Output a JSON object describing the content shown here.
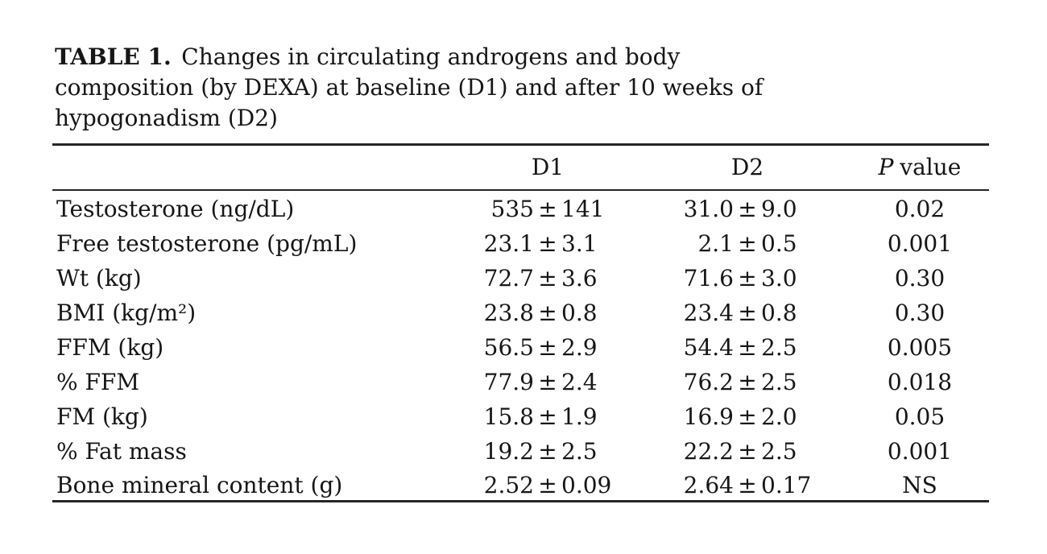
{
  "title": {
    "label": "TABLE 1.",
    "lines": [
      "Changes in circulating androgens and body",
      "composition (by DEXA) at baseline (D1) and after 10 weeks of",
      "hypogonadism (D2)"
    ]
  },
  "table": {
    "pm": "±",
    "columns": {
      "label": "",
      "d1": "D1",
      "d2": "D2",
      "p_symbol": "P",
      "p_rest": "value"
    },
    "rows": [
      {
        "label": "Testosterone (ng/dL)",
        "d1_mean": "535",
        "d1_sd": "141",
        "d2_mean": "31.0",
        "d2_sd": "9.0",
        "p": "0.02"
      },
      {
        "label": "Free testosterone (pg/mL)",
        "d1_mean": "23.1",
        "d1_sd": "3.1",
        "d2_mean": "2.1",
        "d2_sd": "0.5",
        "p": "0.001"
      },
      {
        "label": "Wt (kg)",
        "d1_mean": "72.7",
        "d1_sd": "3.6",
        "d2_mean": "71.6",
        "d2_sd": "3.0",
        "p": "0.30"
      },
      {
        "label": "BMI (kg/m²)",
        "d1_mean": "23.8",
        "d1_sd": "0.8",
        "d2_mean": "23.4",
        "d2_sd": "0.8",
        "p": "0.30"
      },
      {
        "label": "FFM (kg)",
        "d1_mean": "56.5",
        "d1_sd": "2.9",
        "d2_mean": "54.4",
        "d2_sd": "2.5",
        "p": "0.005"
      },
      {
        "label": "% FFM",
        "d1_mean": "77.9",
        "d1_sd": "2.4",
        "d2_mean": "76.2",
        "d2_sd": "2.5",
        "p": "0.018"
      },
      {
        "label": "FM (kg)",
        "d1_mean": "15.8",
        "d1_sd": "1.9",
        "d2_mean": "16.9",
        "d2_sd": "2.0",
        "p": "0.05"
      },
      {
        "label": "% Fat mass",
        "d1_mean": "19.2",
        "d1_sd": "2.5",
        "d2_mean": "22.2",
        "d2_sd": "2.5",
        "p": "0.001"
      },
      {
        "label": "Bone mineral content (g)",
        "d1_mean": "2.52",
        "d1_sd": "0.09",
        "d2_mean": "2.64",
        "d2_sd": "0.17",
        "p": "NS"
      }
    ]
  },
  "colors": {
    "text": "#161616",
    "rule": "#262626",
    "background": "#ffffff"
  }
}
